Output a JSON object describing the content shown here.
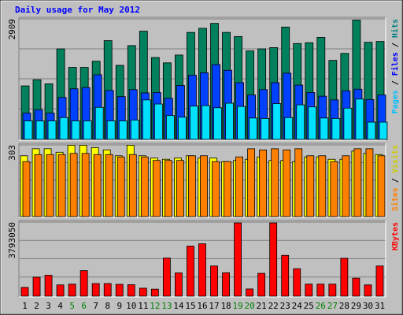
{
  "chart_data": [
    {
      "type": "bar",
      "panel": "top",
      "title": "Daily usage for May 2012",
      "ymax_label": "2909",
      "ylim": [
        0,
        2909
      ],
      "categories": [
        "1",
        "2",
        "3",
        "4",
        "5",
        "6",
        "7",
        "8",
        "9",
        "10",
        "11",
        "12",
        "13",
        "14",
        "15",
        "16",
        "17",
        "18",
        "19",
        "20",
        "21",
        "22",
        "23",
        "24",
        "25",
        "26",
        "27",
        "28",
        "29",
        "30",
        "31"
      ],
      "weekend_days": [
        "5",
        "6",
        "12",
        "13",
        "19",
        "20",
        "26",
        "27"
      ],
      "legend": [
        "Pages",
        "Files",
        "Hits"
      ],
      "series": [
        {
          "name": "Hits",
          "color": "#00805c",
          "values": [
            1300,
            1450,
            1350,
            2200,
            1750,
            1750,
            1900,
            2400,
            1800,
            2280,
            2630,
            1990,
            1860,
            2050,
            2600,
            2700,
            2820,
            2600,
            2500,
            2150,
            2200,
            2230,
            2730,
            2330,
            2350,
            2480,
            1920,
            2090,
            2900,
            2360,
            2380
          ]
        },
        {
          "name": "Files",
          "color": "#0040ff",
          "values": [
            640,
            720,
            640,
            1020,
            1230,
            1260,
            1570,
            1190,
            1040,
            1210,
            1130,
            1140,
            1000,
            1310,
            1560,
            1620,
            1820,
            1680,
            1380,
            1080,
            1210,
            1380,
            1610,
            1320,
            1140,
            1050,
            960,
            1180,
            1220,
            970,
            1080
          ]
        },
        {
          "name": "Pages",
          "color": "#00e0ff",
          "values": [
            450,
            450,
            450,
            530,
            450,
            450,
            780,
            450,
            450,
            470,
            960,
            860,
            580,
            540,
            810,
            820,
            770,
            880,
            800,
            520,
            510,
            870,
            530,
            840,
            790,
            520,
            510,
            760,
            980,
            420,
            420
          ]
        }
      ]
    },
    {
      "type": "bar",
      "panel": "middle",
      "ymax_label": "303",
      "ylim": [
        0,
        303
      ],
      "legend": [
        "Sites",
        "Visits"
      ],
      "series": [
        {
          "name": "Visits",
          "color": "#ffff00",
          "values": [
            260,
            290,
            290,
            275,
            305,
            305,
            295,
            285,
            260,
            305,
            260,
            250,
            245,
            250,
            260,
            250,
            250,
            235,
            240,
            245,
            255,
            240,
            240,
            235,
            255,
            255,
            245,
            245,
            280,
            270,
            265
          ]
        },
        {
          "name": "Sites",
          "color": "#ff8000",
          "values": [
            235,
            265,
            265,
            265,
            270,
            270,
            265,
            265,
            255,
            265,
            255,
            240,
            240,
            240,
            260,
            260,
            235,
            235,
            255,
            290,
            285,
            290,
            285,
            290,
            260,
            260,
            235,
            260,
            290,
            290,
            260
          ]
        }
      ]
    },
    {
      "type": "bar",
      "panel": "bottom",
      "ymax_label": "3793050",
      "ylim": [
        0,
        3793050
      ],
      "legend": [
        "KBytes"
      ],
      "series": [
        {
          "name": "KBytes",
          "color": "#ff0000",
          "values": [
            450000,
            980000,
            1080000,
            580000,
            620000,
            1320000,
            650000,
            650000,
            610000,
            590000,
            410000,
            360000,
            1970000,
            1200000,
            2590000,
            2710000,
            1560000,
            1210000,
            3790000,
            370000,
            1180000,
            3790000,
            2110000,
            1420000,
            620000,
            620000,
            620000,
            1960000,
            930000,
            580000,
            1560000
          ]
        }
      ]
    }
  ]
}
